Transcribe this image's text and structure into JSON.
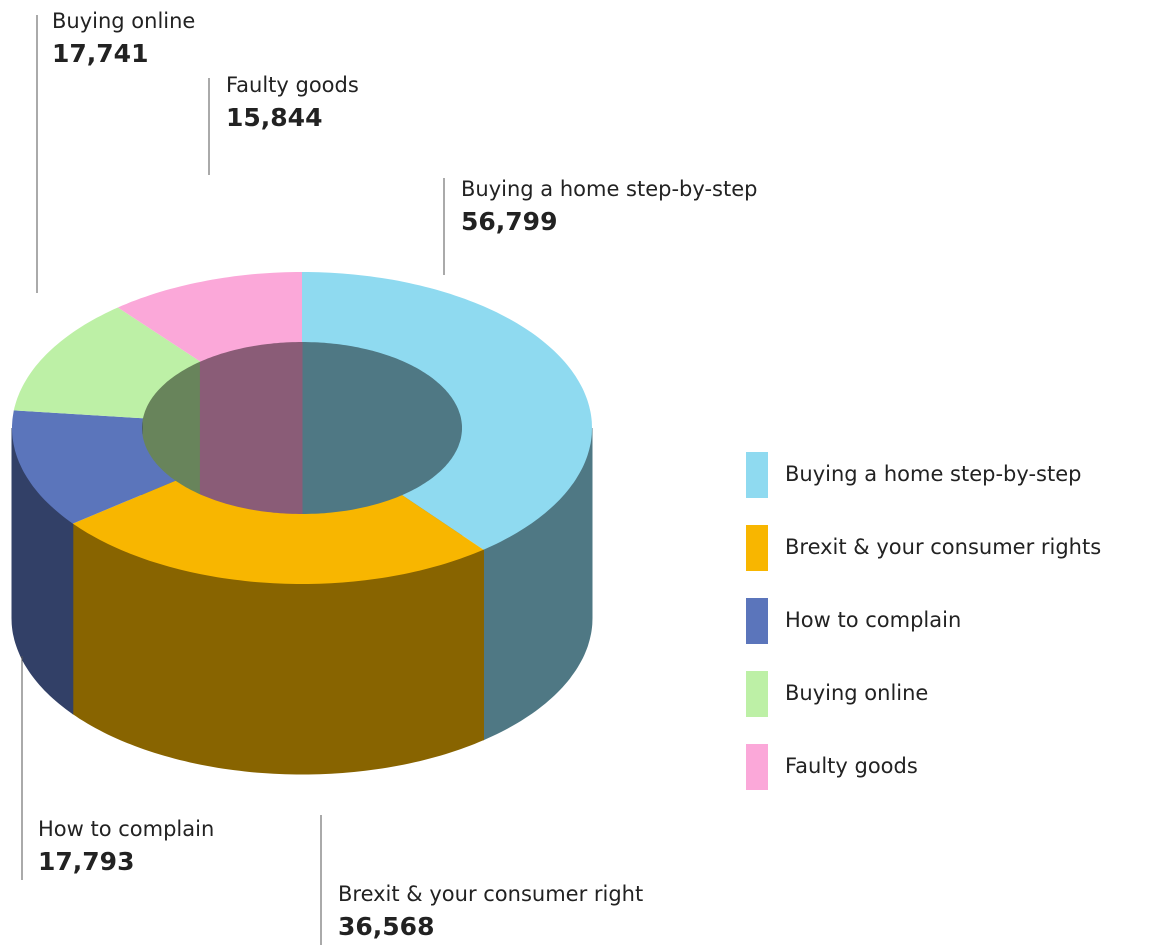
{
  "chart_data": {
    "type": "donut",
    "categories": [
      "Buying a home step-by-step",
      "Brexit & your consumer rights",
      "How to complain",
      "Buying online",
      "Faulty goods"
    ],
    "values": [
      56799,
      36568,
      17793,
      17741,
      15844
    ],
    "value_labels": [
      "56,799",
      "36,568",
      "17,793",
      "17,741",
      "15,844"
    ],
    "callout_labels": [
      "Buying a home step-by-step",
      "Brexit & your consumer right",
      "How to complain",
      "Buying online",
      "Faulty goods"
    ],
    "colors": [
      "#8fdaf0",
      "#f8b600",
      "#5b75bb",
      "#bdf0a6",
      "#fba8d9"
    ],
    "legend": "right"
  }
}
